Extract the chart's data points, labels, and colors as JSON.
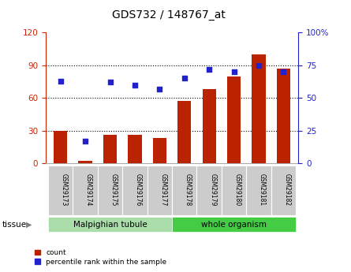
{
  "title": "GDS732 / 148767_at",
  "categories": [
    "GSM29173",
    "GSM29174",
    "GSM29175",
    "GSM29176",
    "GSM29177",
    "GSM29178",
    "GSM29179",
    "GSM29180",
    "GSM29181",
    "GSM29182"
  ],
  "bar_values": [
    30,
    2,
    26,
    26,
    23,
    57,
    68,
    80,
    100,
    87
  ],
  "dot_values": [
    63,
    17,
    62,
    60,
    57,
    65,
    72,
    70,
    75,
    70
  ],
  "ylim_left": [
    0,
    120
  ],
  "ylim_right": [
    0,
    100
  ],
  "left_yticks": [
    0,
    30,
    60,
    90,
    120
  ],
  "right_yticks": [
    0,
    25,
    50,
    75,
    100
  ],
  "right_yticklabels": [
    "0",
    "25",
    "50",
    "75",
    "100%"
  ],
  "bar_color": "#bb2200",
  "dot_color": "#2222cc",
  "tissue_groups": [
    {
      "label": "Malpighian tubule",
      "indices": [
        0,
        1,
        2,
        3,
        4
      ],
      "color": "#aaddaa"
    },
    {
      "label": "whole organism",
      "indices": [
        5,
        6,
        7,
        8,
        9
      ],
      "color": "#44cc44"
    }
  ],
  "legend_items": [
    {
      "label": "count",
      "color": "#bb2200"
    },
    {
      "label": "percentile rank within the sample",
      "color": "#2222cc"
    }
  ],
  "axis_label_color_left": "#cc2200",
  "axis_label_color_right": "#2222cc",
  "tissue_label": "tissue",
  "tick_label_bg": "#cccccc",
  "grid_yticks": [
    30,
    60,
    90
  ]
}
